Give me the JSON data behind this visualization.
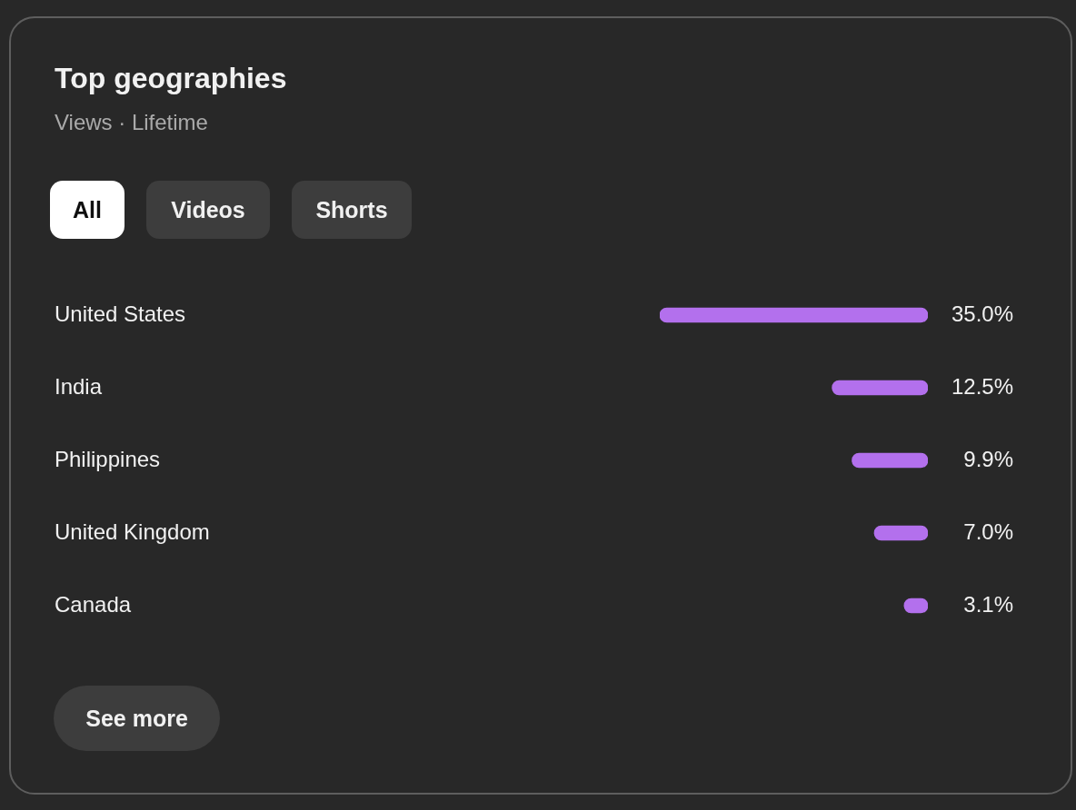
{
  "chart_data": {
    "type": "bar",
    "orientation": "horizontal",
    "title": "Top geographies",
    "subtitle": "Views · Lifetime",
    "categories": [
      "United States",
      "India",
      "Philippines",
      "United Kingdom",
      "Canada"
    ],
    "values": [
      35.0,
      12.5,
      9.9,
      7.0,
      3.1
    ],
    "value_labels": [
      "35.0%",
      "12.5%",
      "9.9%",
      "7.0%",
      "3.1%"
    ],
    "color": "#b370ed",
    "xlim": [
      35,
      0
    ],
    "legend": false,
    "annotations": [
      "All",
      "Videos",
      "Shorts",
      "See more"
    ]
  }
}
